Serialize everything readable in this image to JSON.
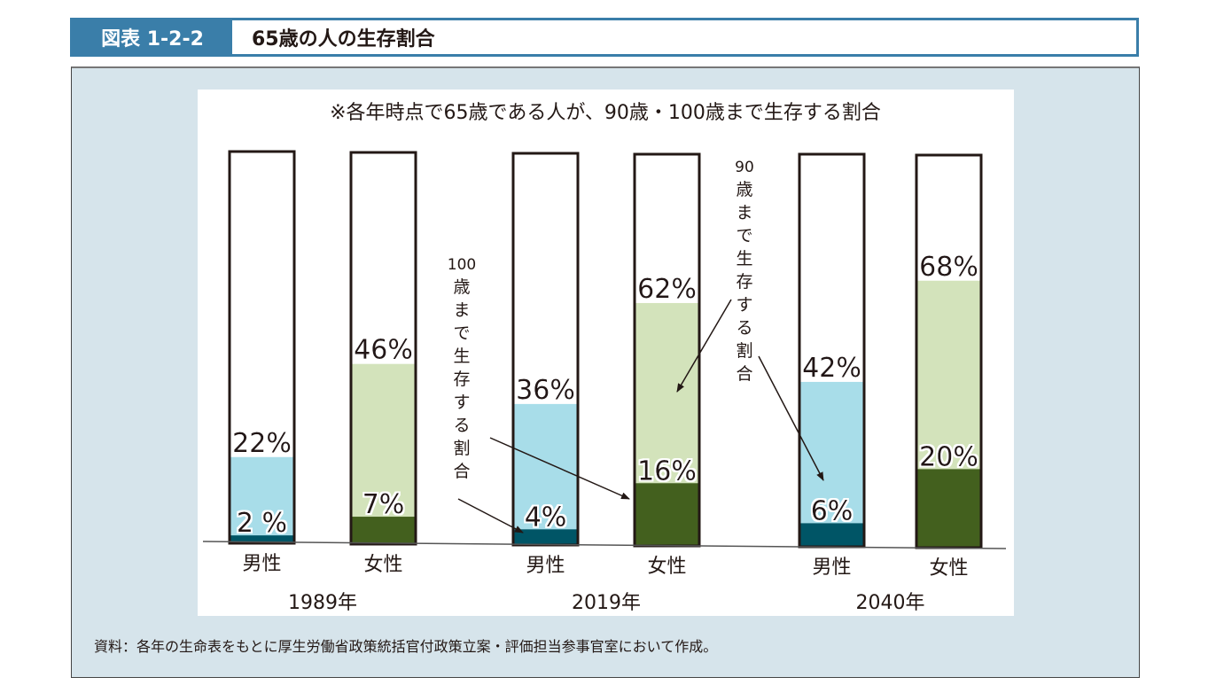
{
  "header": {
    "figure_label": "図表 1-2-2",
    "title": "65歳の人の生存割合"
  },
  "source_note": "資料：各年の生命表をもとに厚生労働省政策統括官付政策立案・評価担当参事官室において作成。",
  "colors": {
    "male_90": "#a8dde9",
    "male_100": "#005566",
    "female_90": "#d3e3bb",
    "female_100": "#43601e",
    "header_blue": "#3a7ea9",
    "panel_bg": "#d6e4eb"
  },
  "chart_data": {
    "type": "bar",
    "title": "※各年時点で65歳である人が、90歳・100歳まで生存する割合",
    "xlabel": "",
    "ylabel": "",
    "ylim": [
      0,
      100
    ],
    "unit": "%",
    "groups": [
      "1989年",
      "2019年",
      "2040年"
    ],
    "categories": [
      "男性",
      "女性",
      "男性",
      "女性",
      "男性",
      "女性"
    ],
    "series": [
      {
        "name": "90歳まで生存する割合",
        "values": [
          22,
          46,
          36,
          62,
          42,
          68
        ]
      },
      {
        "name": "100歳まで生存する割合",
        "values": [
          2,
          7,
          4,
          16,
          6,
          20
        ]
      }
    ],
    "data_labels_90": [
      "22%",
      "46%",
      "36%",
      "62%",
      "42%",
      "68%"
    ],
    "data_labels_100": [
      "2 %",
      "7%",
      "4%",
      "16%",
      "6%",
      "20%"
    ],
    "annotations": [
      {
        "text": "100歳まで生存する割合",
        "points_to": "100歳まで生存する割合"
      },
      {
        "text": "90歳まで生存する割合",
        "points_to": "90歳まで生存する割合"
      }
    ],
    "annotation_chars_100": [
      "100",
      "歳",
      "ま",
      "で",
      "生",
      "存",
      "す",
      "る",
      "割",
      "合"
    ],
    "annotation_chars_90": [
      "90",
      "歳",
      "ま",
      "で",
      "生",
      "存",
      "す",
      "る",
      "割",
      "合"
    ],
    "grid": false,
    "legend": "none"
  }
}
